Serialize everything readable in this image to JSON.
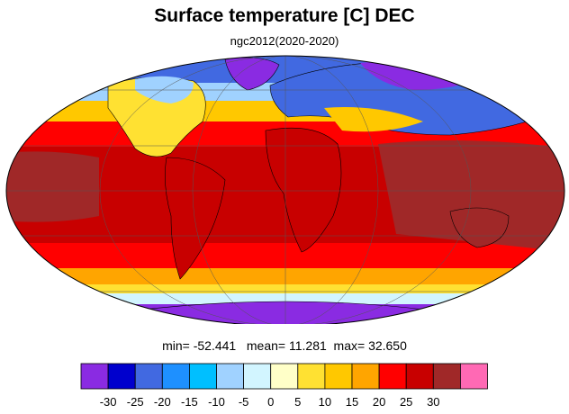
{
  "title": "Surface temperature [C] DEC",
  "subtitle": "ngc2012(2020-2020)",
  "stats": {
    "min_label": "min=",
    "min": "-52.441",
    "mean_label": "mean=",
    "mean": "11.281",
    "max_label": "max=",
    "max": "32.650"
  },
  "colorbar": {
    "colors": [
      "#8a2be2",
      "#0000cd",
      "#4169e1",
      "#1e90ff",
      "#00bfff",
      "#a0d2ff",
      "#d2f5ff",
      "#ffffc8",
      "#ffe132",
      "#ffc800",
      "#ffa500",
      "#ff0000",
      "#c80000",
      "#a02828",
      "#ff69b4"
    ],
    "ticks": [
      "-30",
      "-25",
      "-20",
      "-15",
      "-10",
      "-5",
      "0",
      "5",
      "10",
      "15",
      "20",
      "25",
      "30"
    ]
  },
  "map": {
    "projection": "Mollweide",
    "band_colors": {
      "polar_north": "#4169e1",
      "subpolar_north": "#a0d2ff",
      "temperate_north": "#ffc800",
      "subtropical": "#ff0000",
      "tropical": "#a02828",
      "temperate_south": "#ffe132",
      "subpolar_south": "#d2f5ff",
      "polar_south": "#8a2be2",
      "land": "#c80000"
    }
  }
}
